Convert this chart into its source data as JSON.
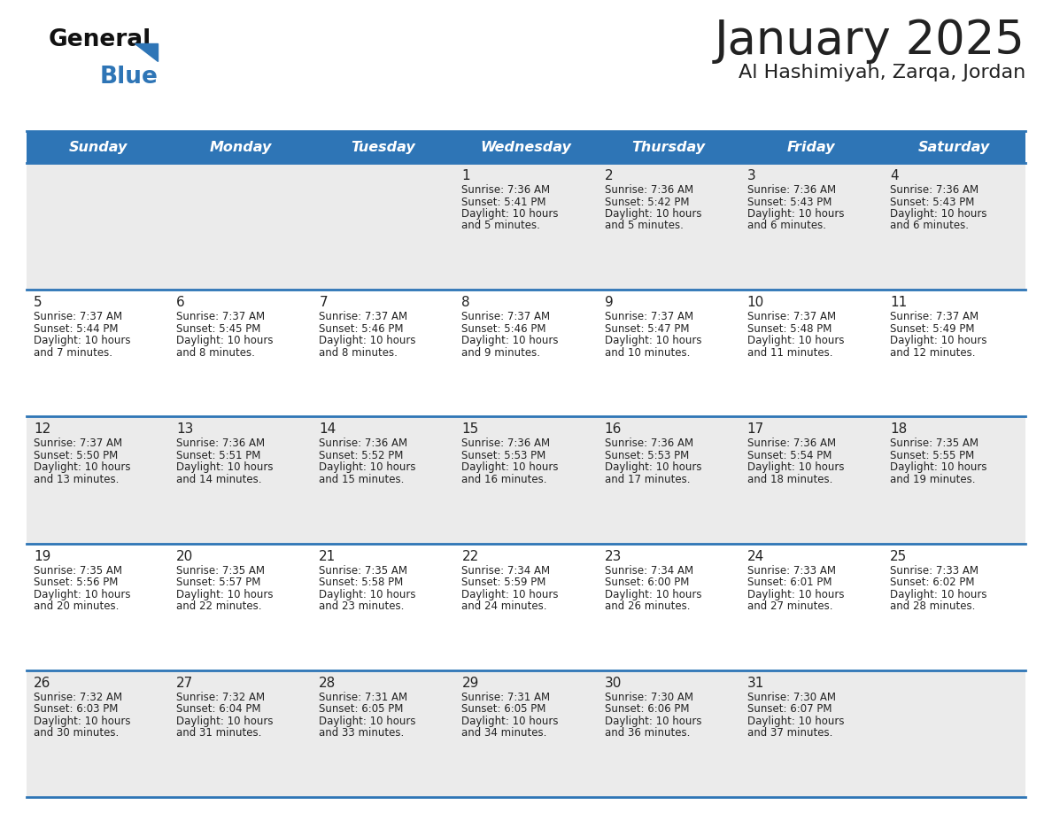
{
  "title": "January 2025",
  "subtitle": "Al Hashimiyah, Zarqa, Jordan",
  "days_of_week": [
    "Sunday",
    "Monday",
    "Tuesday",
    "Wednesday",
    "Thursday",
    "Friday",
    "Saturday"
  ],
  "header_bg": "#2E75B6",
  "header_text": "#FFFFFF",
  "row_bg_odd": "#EBEBEB",
  "row_bg_even": "#FFFFFF",
  "separator_color": "#2E75B6",
  "text_color": "#222222",
  "logo_general_color": "#111111",
  "logo_blue_color": "#2E75B6",
  "calendar_data": [
    [
      null,
      null,
      null,
      {
        "day": 1,
        "sunrise": "7:36 AM",
        "sunset": "5:41 PM",
        "daylight": "10 hours and 5 minutes."
      },
      {
        "day": 2,
        "sunrise": "7:36 AM",
        "sunset": "5:42 PM",
        "daylight": "10 hours and 5 minutes."
      },
      {
        "day": 3,
        "sunrise": "7:36 AM",
        "sunset": "5:43 PM",
        "daylight": "10 hours and 6 minutes."
      },
      {
        "day": 4,
        "sunrise": "7:36 AM",
        "sunset": "5:43 PM",
        "daylight": "10 hours and 6 minutes."
      }
    ],
    [
      {
        "day": 5,
        "sunrise": "7:37 AM",
        "sunset": "5:44 PM",
        "daylight": "10 hours and 7 minutes."
      },
      {
        "day": 6,
        "sunrise": "7:37 AM",
        "sunset": "5:45 PM",
        "daylight": "10 hours and 8 minutes."
      },
      {
        "day": 7,
        "sunrise": "7:37 AM",
        "sunset": "5:46 PM",
        "daylight": "10 hours and 8 minutes."
      },
      {
        "day": 8,
        "sunrise": "7:37 AM",
        "sunset": "5:46 PM",
        "daylight": "10 hours and 9 minutes."
      },
      {
        "day": 9,
        "sunrise": "7:37 AM",
        "sunset": "5:47 PM",
        "daylight": "10 hours and 10 minutes."
      },
      {
        "day": 10,
        "sunrise": "7:37 AM",
        "sunset": "5:48 PM",
        "daylight": "10 hours and 11 minutes."
      },
      {
        "day": 11,
        "sunrise": "7:37 AM",
        "sunset": "5:49 PM",
        "daylight": "10 hours and 12 minutes."
      }
    ],
    [
      {
        "day": 12,
        "sunrise": "7:37 AM",
        "sunset": "5:50 PM",
        "daylight": "10 hours and 13 minutes."
      },
      {
        "day": 13,
        "sunrise": "7:36 AM",
        "sunset": "5:51 PM",
        "daylight": "10 hours and 14 minutes."
      },
      {
        "day": 14,
        "sunrise": "7:36 AM",
        "sunset": "5:52 PM",
        "daylight": "10 hours and 15 minutes."
      },
      {
        "day": 15,
        "sunrise": "7:36 AM",
        "sunset": "5:53 PM",
        "daylight": "10 hours and 16 minutes."
      },
      {
        "day": 16,
        "sunrise": "7:36 AM",
        "sunset": "5:53 PM",
        "daylight": "10 hours and 17 minutes."
      },
      {
        "day": 17,
        "sunrise": "7:36 AM",
        "sunset": "5:54 PM",
        "daylight": "10 hours and 18 minutes."
      },
      {
        "day": 18,
        "sunrise": "7:35 AM",
        "sunset": "5:55 PM",
        "daylight": "10 hours and 19 minutes."
      }
    ],
    [
      {
        "day": 19,
        "sunrise": "7:35 AM",
        "sunset": "5:56 PM",
        "daylight": "10 hours and 20 minutes."
      },
      {
        "day": 20,
        "sunrise": "7:35 AM",
        "sunset": "5:57 PM",
        "daylight": "10 hours and 22 minutes."
      },
      {
        "day": 21,
        "sunrise": "7:35 AM",
        "sunset": "5:58 PM",
        "daylight": "10 hours and 23 minutes."
      },
      {
        "day": 22,
        "sunrise": "7:34 AM",
        "sunset": "5:59 PM",
        "daylight": "10 hours and 24 minutes."
      },
      {
        "day": 23,
        "sunrise": "7:34 AM",
        "sunset": "6:00 PM",
        "daylight": "10 hours and 26 minutes."
      },
      {
        "day": 24,
        "sunrise": "7:33 AM",
        "sunset": "6:01 PM",
        "daylight": "10 hours and 27 minutes."
      },
      {
        "day": 25,
        "sunrise": "7:33 AM",
        "sunset": "6:02 PM",
        "daylight": "10 hours and 28 minutes."
      }
    ],
    [
      {
        "day": 26,
        "sunrise": "7:32 AM",
        "sunset": "6:03 PM",
        "daylight": "10 hours and 30 minutes."
      },
      {
        "day": 27,
        "sunrise": "7:32 AM",
        "sunset": "6:04 PM",
        "daylight": "10 hours and 31 minutes."
      },
      {
        "day": 28,
        "sunrise": "7:31 AM",
        "sunset": "6:05 PM",
        "daylight": "10 hours and 33 minutes."
      },
      {
        "day": 29,
        "sunrise": "7:31 AM",
        "sunset": "6:05 PM",
        "daylight": "10 hours and 34 minutes."
      },
      {
        "day": 30,
        "sunrise": "7:30 AM",
        "sunset": "6:06 PM",
        "daylight": "10 hours and 36 minutes."
      },
      {
        "day": 31,
        "sunrise": "7:30 AM",
        "sunset": "6:07 PM",
        "daylight": "10 hours and 37 minutes."
      },
      null
    ]
  ]
}
